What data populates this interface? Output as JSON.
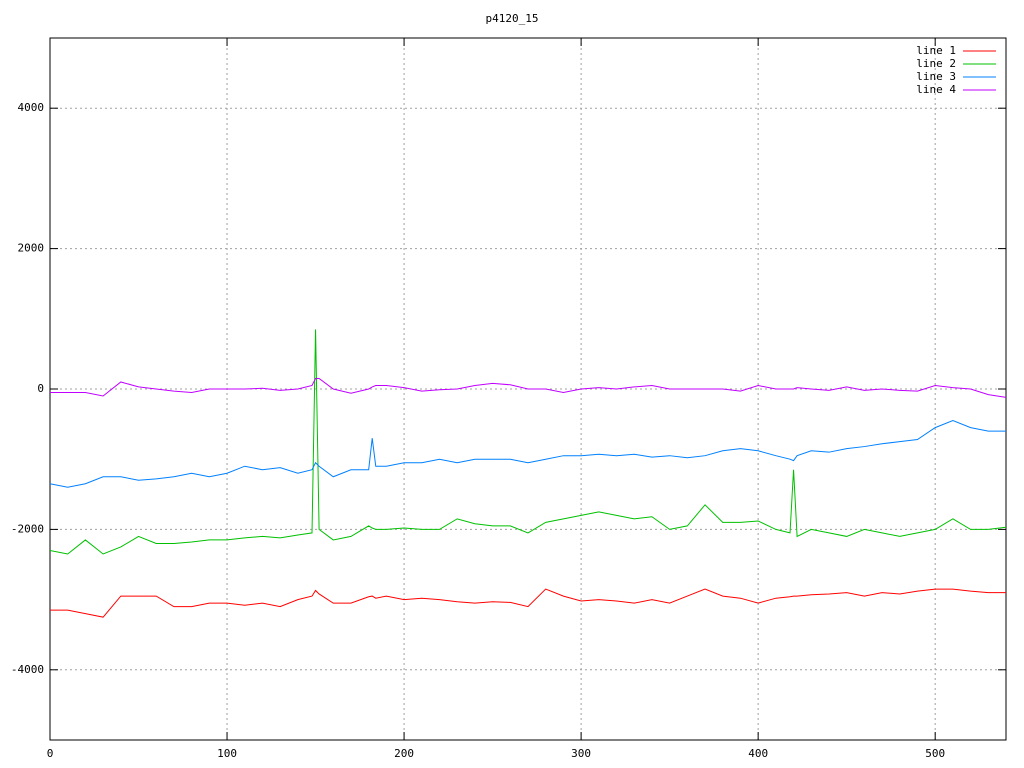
{
  "chart_data": {
    "type": "line",
    "title": "p4120_15",
    "x": [
      0,
      10,
      20,
      30,
      40,
      50,
      60,
      70,
      80,
      90,
      100,
      110,
      120,
      130,
      140,
      148,
      150,
      152,
      160,
      170,
      180,
      182,
      184,
      190,
      200,
      210,
      220,
      230,
      240,
      250,
      260,
      270,
      280,
      290,
      300,
      310,
      320,
      330,
      340,
      350,
      360,
      370,
      380,
      390,
      400,
      410,
      418,
      420,
      422,
      430,
      440,
      450,
      460,
      470,
      480,
      490,
      500,
      510,
      520,
      530,
      540
    ],
    "series": [
      {
        "name": "line 1",
        "color": "#ff0000",
        "values": [
          -3150,
          -3150,
          -3200,
          -3250,
          -2950,
          -2950,
          -2950,
          -3100,
          -3100,
          -3050,
          -3050,
          -3080,
          -3050,
          -3100,
          -3000,
          -2950,
          -2870,
          -2920,
          -3050,
          -3050,
          -2960,
          -2950,
          -2980,
          -2950,
          -3000,
          -2980,
          -3000,
          -3030,
          -3050,
          -3030,
          -3040,
          -3100,
          -2850,
          -2950,
          -3020,
          -3000,
          -3020,
          -3050,
          -3000,
          -3050,
          -2950,
          -2850,
          -2950,
          -2980,
          -3050,
          -2980,
          -2960,
          -2950,
          -2950,
          -2930,
          -2920,
          -2900,
          -2950,
          -2900,
          -2920,
          -2880,
          -2850,
          -2850,
          -2880,
          -2900,
          -2900
        ]
      },
      {
        "name": "line 2",
        "color": "#00c000",
        "values": [
          -2300,
          -2350,
          -2150,
          -2350,
          -2250,
          -2100,
          -2200,
          -2200,
          -2180,
          -2150,
          -2150,
          -2120,
          -2100,
          -2120,
          -2080,
          -2050,
          850,
          -2000,
          -2150,
          -2100,
          -1950,
          -1980,
          -2000,
          -2000,
          -1980,
          -2000,
          -2000,
          -1850,
          -1920,
          -1950,
          -1950,
          -2050,
          -1900,
          -1850,
          -1800,
          -1750,
          -1800,
          -1850,
          -1820,
          -2000,
          -1950,
          -1650,
          -1900,
          -1900,
          -1880,
          -2000,
          -2050,
          -1150,
          -2100,
          -2000,
          -2050,
          -2100,
          -2000,
          -2050,
          -2100,
          -2050,
          -2000,
          -1850,
          -2000,
          -2000,
          -1970
        ]
      },
      {
        "name": "line 3",
        "color": "#0080ff",
        "values": [
          -1350,
          -1400,
          -1350,
          -1250,
          -1250,
          -1300,
          -1280,
          -1250,
          -1200,
          -1250,
          -1200,
          -1100,
          -1150,
          -1120,
          -1200,
          -1150,
          -1050,
          -1100,
          -1250,
          -1150,
          -1150,
          -700,
          -1100,
          -1100,
          -1050,
          -1050,
          -1000,
          -1050,
          -1000,
          -1000,
          -1000,
          -1050,
          -1000,
          -950,
          -950,
          -930,
          -950,
          -930,
          -970,
          -950,
          -980,
          -950,
          -880,
          -850,
          -880,
          -950,
          -1000,
          -1020,
          -950,
          -880,
          -900,
          -850,
          -820,
          -780,
          -750,
          -720,
          -550,
          -450,
          -550,
          -600,
          -600
        ]
      },
      {
        "name": "line 4",
        "color": "#c000ff",
        "values": [
          -50,
          -50,
          -50,
          -100,
          100,
          30,
          0,
          -30,
          -50,
          0,
          0,
          0,
          10,
          -20,
          0,
          50,
          150,
          150,
          0,
          -60,
          0,
          30,
          50,
          50,
          20,
          -30,
          -10,
          0,
          50,
          80,
          60,
          0,
          0,
          -50,
          0,
          20,
          0,
          30,
          50,
          0,
          0,
          0,
          0,
          -30,
          50,
          0,
          0,
          0,
          20,
          0,
          -20,
          30,
          -20,
          0,
          -20,
          -30,
          50,
          20,
          0,
          -80,
          -120
        ]
      }
    ],
    "xlim": [
      0,
      540
    ],
    "xticks": [
      0,
      100,
      200,
      300,
      400,
      500
    ],
    "ylim": [
      -5000,
      5000
    ],
    "yticks": [
      -4000,
      -2000,
      0,
      2000,
      4000
    ],
    "grid": true,
    "legend": "top-right"
  }
}
